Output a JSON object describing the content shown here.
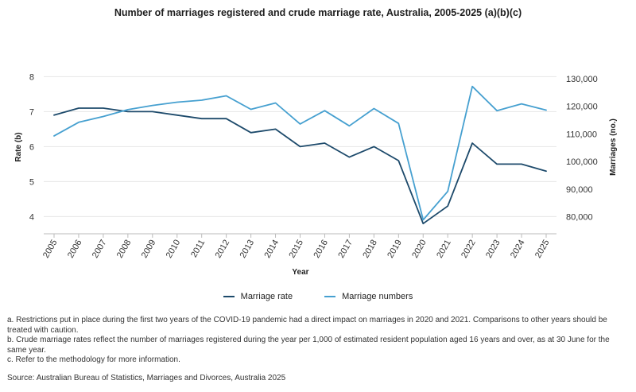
{
  "title": "Number of marriages registered and crude marriage rate, Australia, 2005-2025 (a)(b)(c)",
  "colors": {
    "rate": "#1d4a6b",
    "numbers": "#46a0d0",
    "grid": "#e6e6e6",
    "axis": "#555555"
  },
  "chart_data": {
    "type": "line",
    "title": "Number of marriages registered and crude marriage rate, Australia, 2005-2025 (a)(b)(c)",
    "xlabel": "Year",
    "ylabel_left": "Rate (b)",
    "ylabel_right": "Marriages (no.)",
    "categories": [
      "2005",
      "2006",
      "2007",
      "2008",
      "2009",
      "2010",
      "2011",
      "2012",
      "2013",
      "2014",
      "2015",
      "2016",
      "2017",
      "2018",
      "2019",
      "2020",
      "2021",
      "2022",
      "2023",
      "2024",
      "2025"
    ],
    "ylim_left": [
      3.6,
      8.1
    ],
    "yticks_left": [
      4,
      5,
      6,
      7,
      8
    ],
    "ylim_right": [
      75000,
      132000
    ],
    "yticks_right": [
      80000,
      90000,
      100000,
      110000,
      120000,
      130000
    ],
    "ytick_labels_right": [
      "80,000",
      "90,000",
      "100,000",
      "110,000",
      "120,000",
      "130,000"
    ],
    "grid": "horizontal",
    "legend_position": "bottom-center",
    "series": [
      {
        "name": "Marriage rate",
        "axis": "left",
        "values": [
          6.9,
          7.1,
          7.1,
          7.0,
          7.0,
          6.9,
          6.8,
          6.8,
          6.4,
          6.5,
          6.0,
          6.1,
          5.7,
          6.0,
          5.6,
          3.8,
          4.3,
          6.1,
          5.5,
          5.5,
          5.3
        ]
      },
      {
        "name": "Marriage numbers",
        "axis": "right",
        "values": [
          109300,
          114200,
          116300,
          118800,
          120300,
          121500,
          122200,
          123800,
          118900,
          121200,
          113600,
          118400,
          112900,
          119200,
          113800,
          78900,
          89200,
          127200,
          118400,
          120900,
          118600
        ]
      }
    ]
  },
  "legend": {
    "rate": "Marriage rate",
    "numbers": "Marriage numbers"
  },
  "notes": {
    "a": "a. Restrictions put in place during the first two years of the COVID-19 pandemic had a direct impact on marriages in 2020 and 2021. Comparisons to other years should be treated with caution.",
    "b": "b. Crude marriage rates reflect the number of marriages registered during the year per 1,000 of estimated resident population aged 16 years and over, as at 30 June for the same year.",
    "c": "c. Refer to the methodology for more information."
  },
  "source": "Source: Australian Bureau of Statistics, Marriages and Divorces, Australia 2025"
}
